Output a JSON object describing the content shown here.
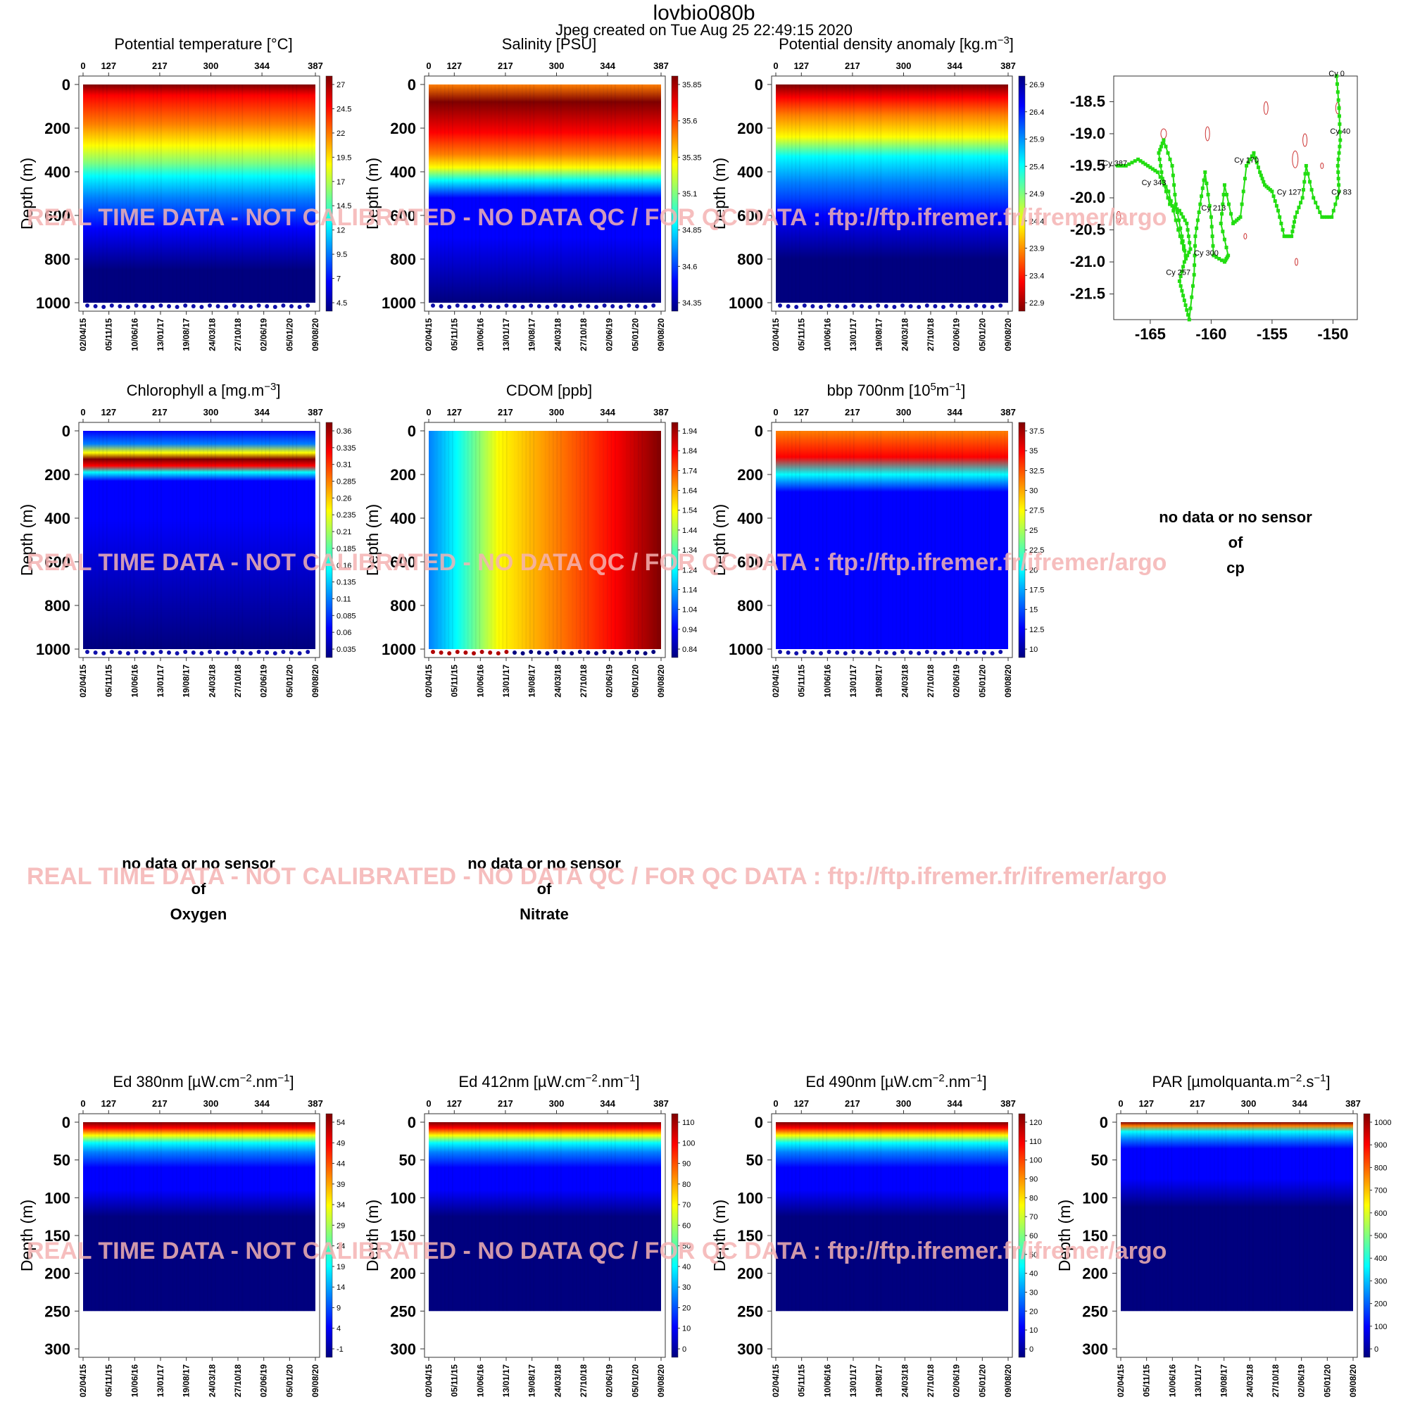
{
  "header": {
    "title": "lovbio080b",
    "subtitle": "Jpeg created on  Tue Aug 25 22:49:15 2020"
  },
  "watermark": "REAL TIME DATA - NOT CALIBRATED - NO DATA QC   /  FOR QC DATA : ftp://ftp.ifremer.fr/ifremer/argo",
  "colors": {
    "jet": [
      "#00007f",
      "#0000ff",
      "#007fff",
      "#00ffff",
      "#7fff7f",
      "#ffff00",
      "#ff7f00",
      "#ff0000",
      "#7f0000"
    ],
    "density_reversed": true,
    "watermark": "#f4b3b3",
    "track": "#22dd11",
    "contour": "#cc3333"
  },
  "axes": {
    "cycle_ticks": [
      "0",
      "127",
      "217",
      "300",
      "344",
      "387"
    ],
    "date_ticks": [
      "02/04/15",
      "05/11/15",
      "10/06/16",
      "13/01/17",
      "19/08/17",
      "24/03/18",
      "27/10/18",
      "02/06/19",
      "05/01/20",
      "09/08/20"
    ],
    "depth_label": "Depth (m)",
    "depth_ticks_deep": [
      "0",
      "200",
      "400",
      "600",
      "800",
      "1000"
    ],
    "depth_ticks_shallow": [
      "0",
      "50",
      "100",
      "150",
      "200",
      "250",
      "300"
    ]
  },
  "panels": {
    "temp": {
      "title": "Potential temperature [°C]",
      "scale": [
        "27",
        "24.5",
        "22",
        "19.5",
        "17",
        "14.5",
        "12",
        "9.5",
        "7",
        "4.5"
      ]
    },
    "sal": {
      "title": "Salinity [PSU]",
      "scale": [
        "35.85",
        "35.6",
        "35.35",
        "35.1",
        "34.85",
        "34.6",
        "34.35"
      ]
    },
    "dens": {
      "title": "Potential density anomaly [kg.m",
      "title_sup": "−3",
      "title_end": "]",
      "scale": [
        "26.9",
        "26.4",
        "25.9",
        "25.4",
        "24.9",
        "24.4",
        "23.9",
        "23.4",
        "22.9"
      ]
    },
    "chla": {
      "title": "Chlorophyll a [mg.m",
      "title_sup": "−3",
      "title_end": "]",
      "scale": [
        "0.36",
        "0.335",
        "0.31",
        "0.285",
        "0.26",
        "0.235",
        "0.21",
        "0.185",
        "0.16",
        "0.135",
        "0.11",
        "0.085",
        "0.06",
        "0.035"
      ]
    },
    "cdom": {
      "title": "CDOM  [ppb]",
      "scale": [
        "1.94",
        "1.84",
        "1.74",
        "1.64",
        "1.54",
        "1.44",
        "1.34",
        "1.24",
        "1.14",
        "1.04",
        "0.94",
        "0.84"
      ]
    },
    "bbp": {
      "title": "bbp 700nm [10",
      "title_sup": "5",
      "title_mid": "m",
      "title_sup2": "−1",
      "title_end": "]",
      "scale": [
        "37.5",
        "35",
        "32.5",
        "30",
        "27.5",
        "25",
        "22.5",
        "20",
        "17.5",
        "15",
        "12.5",
        "10"
      ]
    },
    "ed380": {
      "title": "Ed 380nm [µW.cm",
      "title_sup": "−2",
      "title_mid": ".nm",
      "title_sup2": "−1",
      "title_end": "]",
      "scale": [
        "54",
        "49",
        "44",
        "39",
        "34",
        "29",
        "24",
        "19",
        "14",
        "9",
        "4",
        "-1"
      ]
    },
    "ed412": {
      "title": "Ed 412nm [µW.cm",
      "title_sup": "−2",
      "title_mid": ".nm",
      "title_sup2": "−1",
      "title_end": "]",
      "scale": [
        "110",
        "100",
        "90",
        "80",
        "70",
        "60",
        "50",
        "40",
        "30",
        "20",
        "10",
        "0"
      ]
    },
    "ed490": {
      "title": "Ed 490nm [µW.cm",
      "title_sup": "−2",
      "title_mid": ".nm",
      "title_sup2": "−1",
      "title_end": "]",
      "scale": [
        "120",
        "110",
        "100",
        "90",
        "80",
        "70",
        "60",
        "50",
        "40",
        "30",
        "20",
        "10",
        "0"
      ]
    },
    "par": {
      "title": "PAR [µmolquanta.m",
      "title_sup": "−2",
      "title_mid": ".s",
      "title_sup2": "−1",
      "title_end": "]",
      "scale": [
        "1000",
        "900",
        "800",
        "700",
        "600",
        "500",
        "400",
        "300",
        "200",
        "100",
        "0"
      ]
    }
  },
  "nodata": {
    "cp": [
      "no data or no sensor",
      "of",
      "cp"
    ],
    "oxygen": [
      "no data or no sensor",
      "of",
      "Oxygen"
    ],
    "nitrate": [
      "no data or no sensor",
      "of",
      "Nitrate"
    ]
  },
  "map": {
    "x_ticks": [
      "-165",
      "-160",
      "-155",
      "-150"
    ],
    "y_ticks": [
      "-18.5",
      "-19.0",
      "-19.5",
      "-20.0",
      "-20.5",
      "-21.0",
      "-21.5"
    ],
    "cycle_labels": [
      {
        "text": "Cy 0",
        "lon": -149.7,
        "lat": -18.1
      },
      {
        "text": "Cy 40",
        "lon": -149.4,
        "lat": -19.0
      },
      {
        "text": "Cy 83",
        "lon": -149.3,
        "lat": -19.95
      },
      {
        "text": "Cy 127",
        "lon": -153.6,
        "lat": -19.95
      },
      {
        "text": "Cy 170",
        "lon": -157.1,
        "lat": -19.45
      },
      {
        "text": "Cy 213",
        "lon": -159.8,
        "lat": -20.2
      },
      {
        "text": "Cy 300",
        "lon": -160.4,
        "lat": -20.9
      },
      {
        "text": "Cy 257",
        "lon": -162.7,
        "lat": -21.2
      },
      {
        "text": "Cy 343",
        "lon": -164.7,
        "lat": -19.8
      },
      {
        "text": "Cy 387",
        "lon": -167.9,
        "lat": -19.5
      }
    ]
  },
  "chart_data": [
    {
      "type": "heatmap",
      "title": "Potential temperature [°C]",
      "xlabel": "",
      "ylabel": "Depth (m)",
      "ylim": [
        1000,
        0
      ],
      "colorbar_range": [
        4.5,
        27
      ],
      "depth_profile_value": [
        27,
        26,
        22.5,
        19.5,
        17,
        14.5,
        12,
        10,
        8.5,
        7,
        6,
        5.5,
        5
      ]
    },
    {
      "type": "heatmap",
      "title": "Salinity [PSU]",
      "ylabel": "Depth (m)",
      "ylim": [
        1000,
        0
      ],
      "colorbar_range": [
        34.35,
        35.85
      ]
    },
    {
      "type": "heatmap",
      "title": "Potential density anomaly [kg.m−3]",
      "ylabel": "Depth (m)",
      "ylim": [
        1000,
        0
      ],
      "colorbar_range": [
        22.9,
        26.9
      ]
    },
    {
      "type": "heatmap",
      "title": "Chlorophyll a [mg.m−3]",
      "ylabel": "Depth (m)",
      "ylim": [
        1000,
        0
      ],
      "colorbar_range": [
        0.035,
        0.36
      ]
    },
    {
      "type": "heatmap",
      "title": "CDOM  [ppb]",
      "ylabel": "Depth (m)",
      "ylim": [
        1000,
        0
      ],
      "colorbar_range": [
        0.84,
        1.94
      ]
    },
    {
      "type": "heatmap",
      "title": "bbp 700nm [105m−1]",
      "ylabel": "Depth (m)",
      "ylim": [
        1000,
        0
      ],
      "colorbar_range": [
        10,
        37.5
      ]
    },
    {
      "type": "heatmap",
      "title": "Ed 380nm [µW.cm−2.nm−1]",
      "ylabel": "Depth (m)",
      "ylim": [
        300,
        0
      ],
      "colorbar_range": [
        -1,
        54
      ]
    },
    {
      "type": "heatmap",
      "title": "Ed 412nm [µW.cm−2.nm−1]",
      "ylabel": "Depth (m)",
      "ylim": [
        300,
        0
      ],
      "colorbar_range": [
        0,
        110
      ]
    },
    {
      "type": "heatmap",
      "title": "Ed 490nm [µW.cm−2.nm−1]",
      "ylabel": "Depth (m)",
      "ylim": [
        300,
        0
      ],
      "colorbar_range": [
        0,
        120
      ]
    },
    {
      "type": "heatmap",
      "title": "PAR [µmolquanta.m−2.s−1]",
      "ylabel": "Depth (m)",
      "ylim": [
        300,
        0
      ],
      "colorbar_range": [
        0,
        1000
      ]
    },
    {
      "type": "scatter",
      "title": "",
      "xlim": [
        -168,
        -148
      ],
      "ylim": [
        -21.9,
        -18.1
      ],
      "track": [
        [
          -149.7,
          -18.1
        ],
        [
          -149.5,
          -18.6
        ],
        [
          -149.4,
          -19.1
        ],
        [
          -149.6,
          -19.5
        ],
        [
          -149.5,
          -19.9
        ],
        [
          -150.1,
          -20.3
        ],
        [
          -150.9,
          -20.3
        ],
        [
          -151.6,
          -20.0
        ],
        [
          -152.2,
          -19.5
        ],
        [
          -152.5,
          -20.0
        ],
        [
          -153.1,
          -20.3
        ],
        [
          -153.4,
          -20.6
        ],
        [
          -154.0,
          -20.6
        ],
        [
          -154.5,
          -20.2
        ],
        [
          -155.0,
          -19.9
        ],
        [
          -155.6,
          -19.8
        ],
        [
          -156.0,
          -19.6
        ],
        [
          -156.5,
          -19.3
        ],
        [
          -157.1,
          -19.5
        ],
        [
          -157.6,
          -20.3
        ],
        [
          -158.2,
          -20.4
        ],
        [
          -158.9,
          -19.8
        ],
        [
          -159.2,
          -20.4
        ],
        [
          -158.6,
          -20.9
        ],
        [
          -158.9,
          -21.0
        ],
        [
          -159.8,
          -20.9
        ],
        [
          -160.0,
          -20.3
        ],
        [
          -160.5,
          -19.6
        ],
        [
          -160.9,
          -20.1
        ],
        [
          -161.3,
          -20.6
        ],
        [
          -161.4,
          -21.2
        ],
        [
          -161.8,
          -21.9
        ],
        [
          -162.2,
          -21.6
        ],
        [
          -162.6,
          -21.3
        ],
        [
          -162.2,
          -21.0
        ],
        [
          -161.7,
          -20.8
        ],
        [
          -162.0,
          -20.4
        ],
        [
          -162.6,
          -20.2
        ],
        [
          -163.4,
          -20.1
        ],
        [
          -164.0,
          -19.7
        ],
        [
          -164.3,
          -19.3
        ],
        [
          -163.9,
          -19.1
        ],
        [
          -163.2,
          -19.5
        ],
        [
          -162.9,
          -20.1
        ],
        [
          -162.4,
          -20.6
        ],
        [
          -162.1,
          -20.9
        ],
        [
          -162.7,
          -20.5
        ],
        [
          -163.5,
          -19.9
        ],
        [
          -164.4,
          -19.6
        ],
        [
          -165.2,
          -19.5
        ],
        [
          -166.0,
          -19.4
        ],
        [
          -167.0,
          -19.5
        ],
        [
          -167.9,
          -19.5
        ]
      ]
    }
  ]
}
